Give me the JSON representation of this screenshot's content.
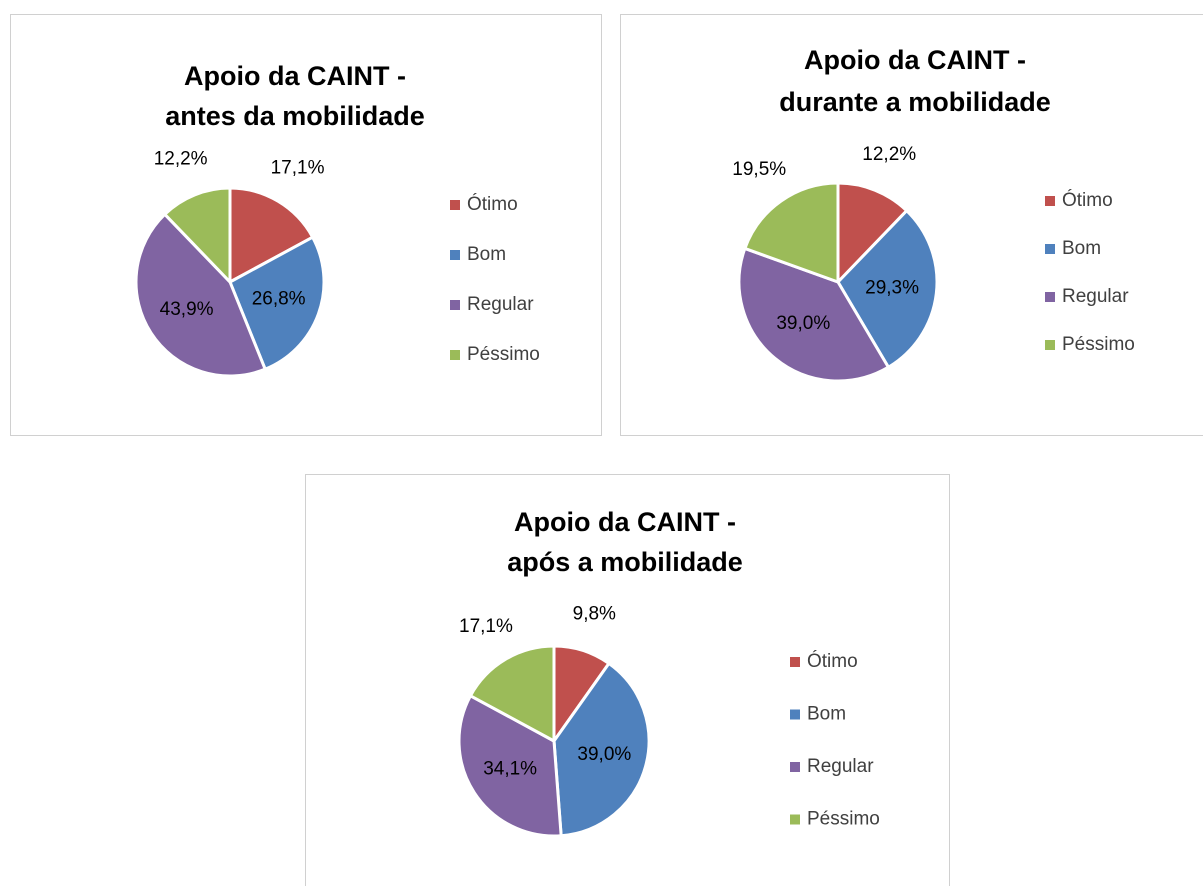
{
  "chart_data": [
    {
      "type": "pie",
      "title": [
        "Apoio da CAINT -",
        "antes da mobilidade"
      ],
      "categories": [
        "Ótimo",
        "Bom",
        "Regular",
        "Péssimo"
      ],
      "values": [
        17.1,
        26.8,
        43.9,
        12.2
      ],
      "value_labels": [
        "17,1%",
        "26,8%",
        "43,9%",
        "12,2%"
      ],
      "colors": [
        "#c0504d",
        "#4f81bd",
        "#8064a2",
        "#9bbb59"
      ],
      "legend": "right"
    },
    {
      "type": "pie",
      "title": [
        "Apoio da CAINT -",
        "durante a mobilidade"
      ],
      "categories": [
        "Ótimo",
        "Bom",
        "Regular",
        "Péssimo"
      ],
      "values": [
        12.2,
        29.3,
        39.0,
        19.5
      ],
      "value_labels": [
        "12,2%",
        "29,3%",
        "39,0%",
        "19,5%"
      ],
      "colors": [
        "#c0504d",
        "#4f81bd",
        "#8064a2",
        "#9bbb59"
      ],
      "legend": "right"
    },
    {
      "type": "pie",
      "title": [
        "Apoio da CAINT -",
        "após a mobilidade"
      ],
      "categories": [
        "Ótimo",
        "Bom",
        "Regular",
        "Péssimo"
      ],
      "values": [
        9.8,
        39.0,
        34.1,
        17.1
      ],
      "value_labels": [
        "9,8%",
        "39,0%",
        "34,1%",
        "17,1%"
      ],
      "colors": [
        "#c0504d",
        "#4f81bd",
        "#8064a2",
        "#9bbb59"
      ],
      "legend": "right"
    }
  ]
}
